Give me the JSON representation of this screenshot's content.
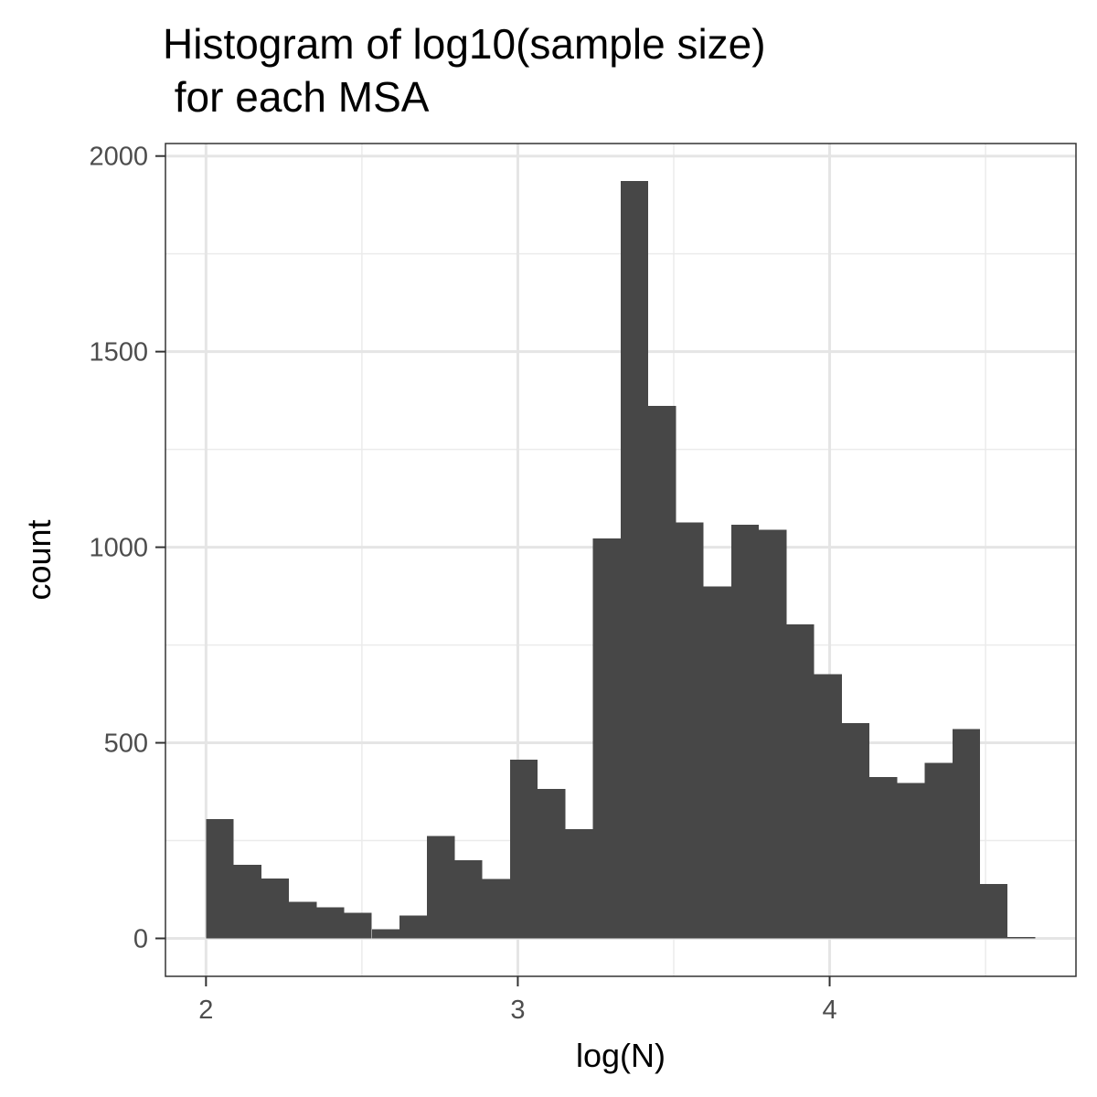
{
  "chart_data": {
    "type": "bar",
    "title_lines": [
      "Histogram of log10(sample size)",
      " for each MSA"
    ],
    "xlabel": "log(N)",
    "ylabel": "count",
    "xlim": [
      1.87,
      4.79
    ],
    "ylim": [
      -97,
      2032
    ],
    "x_ticks": [
      2,
      3,
      4
    ],
    "x_tick_labels": [
      "2",
      "3",
      "4"
    ],
    "x_minor_ticks": [
      2.5,
      3.5,
      4.5
    ],
    "y_ticks": [
      0,
      500,
      1000,
      1500,
      2000
    ],
    "y_tick_labels": [
      "0",
      "500",
      "1000",
      "1500",
      "2000"
    ],
    "y_minor_ticks": [
      250,
      750,
      1250,
      1750
    ],
    "bin_width": 0.0886,
    "bins_start": [
      2.0,
      2.0886,
      2.1773,
      2.2659,
      2.3546,
      2.4432,
      2.5319,
      2.6205,
      2.7092,
      2.7978,
      2.8865,
      2.9751,
      3.0638,
      3.1524,
      3.2411,
      3.3297,
      3.4184,
      3.507,
      3.5957,
      3.6843,
      3.773,
      3.8616,
      3.9503,
      4.0389,
      4.1276,
      4.2162,
      4.3049,
      4.3935,
      4.4822,
      4.5708
    ],
    "values": [
      305,
      188,
      153,
      94,
      80,
      66,
      23,
      58,
      262,
      200,
      152,
      457,
      382,
      279,
      1023,
      1936,
      1361,
      1063,
      900,
      1057,
      1045,
      803,
      675,
      550,
      413,
      397,
      449,
      535,
      139,
      3
    ],
    "bar_color": "#474747",
    "grid": true,
    "panel_border": true
  }
}
